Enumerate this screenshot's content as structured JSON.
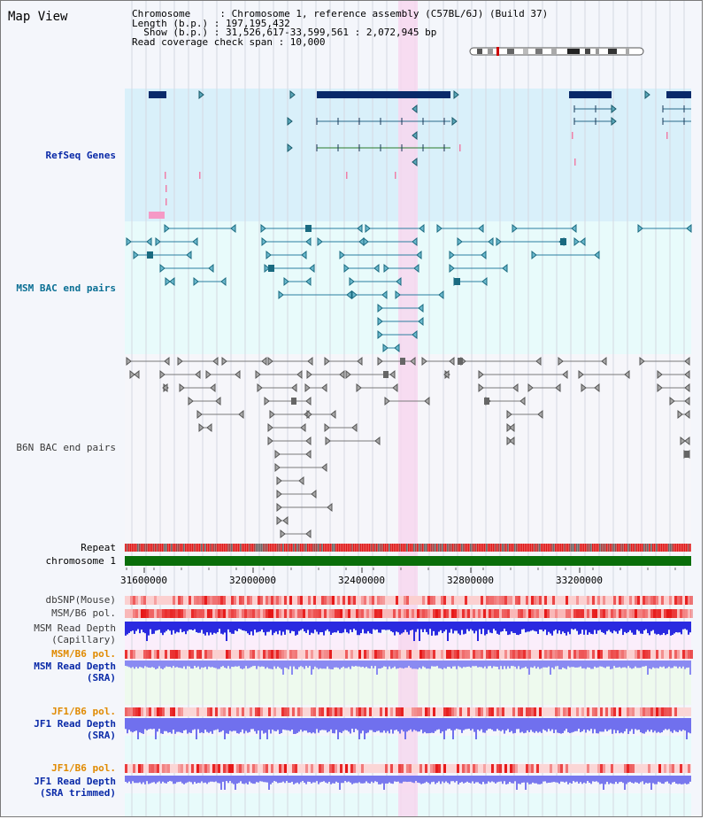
{
  "page": {
    "title": "Map View",
    "header": {
      "chromosome_line": "Chromosome     : Chromosome 1, reference assembly (C57BL/6J) (Build 37)",
      "length_line": "Length (b.p.) : 197,195,432",
      "show_line": "  Show (b.p.) : 31,526,617-33,599,561 : 2,072,945 bp",
      "span_line": "Read coverage check span : 10,000"
    }
  },
  "tracks": {
    "refseq": "RefSeq Genes",
    "msm_bac": "MSM BAC end pairs",
    "b6n_bac": "B6N BAC end pairs",
    "repeat": "Repeat",
    "chromosome": "chromosome 1",
    "dbsnp": "dbSNP(Mouse)",
    "msm_b6_pol_1": "MSM/B6 pol.",
    "msm_depth_cap": "MSM Read Depth\n(Capillary)",
    "msm_b6_pol_2": "MSM/B6 pol.",
    "msm_depth_sra": "MSM Read Depth\n(SRA)",
    "jf1_b6_pol_1": "JF1/B6 pol.",
    "jf1_depth_sra": "JF1 Read Depth\n(SRA)",
    "jf1_b6_pol_2": "JF1/B6 pol.",
    "jf1_depth_trim": "JF1 Read Depth\n(SRA trimmed)"
  },
  "axis": {
    "ticks": [
      "31600000",
      "32000000",
      "32400000",
      "32800000",
      "33200000"
    ]
  },
  "colors": {
    "refseq_bg": "#d9f0fa",
    "msm_bg": "#e8fbfb",
    "highlight": "#f7d7ee",
    "gene": "#0a2a6a",
    "msm_feature": "#2a7fa0",
    "b6n_feature": "#777777",
    "chromosome_bar": "#0a6e0a",
    "repeat": "#e02020",
    "depth": "#3434e0"
  }
}
